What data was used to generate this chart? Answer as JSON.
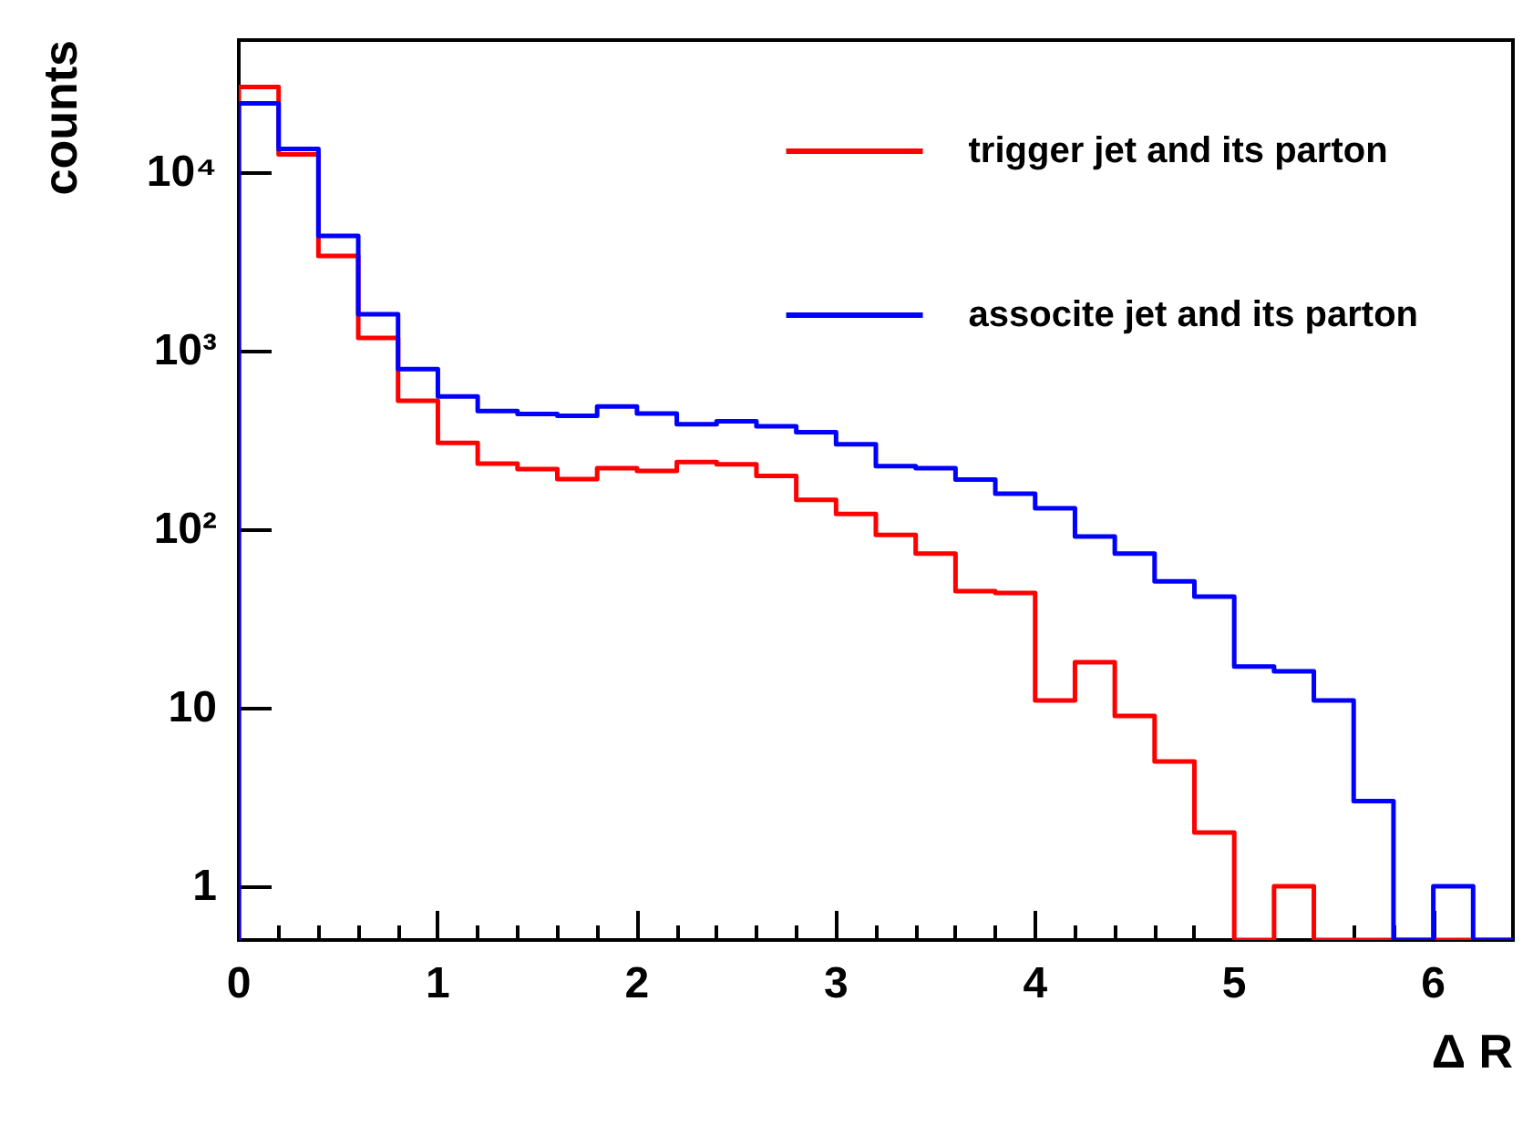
{
  "chart_data": {
    "type": "histogram",
    "xlabel": "Δ R",
    "ylabel": "counts",
    "bins": [
      0,
      0.2,
      0.4,
      0.6,
      0.8,
      1.0,
      1.2,
      1.4,
      1.6,
      1.8,
      2.0,
      2.2,
      2.4,
      2.6,
      2.8,
      3.0,
      3.2,
      3.4,
      3.6,
      3.8,
      4.0,
      4.2,
      4.4,
      4.6,
      4.8,
      5.0,
      5.2,
      5.4,
      5.6,
      5.8,
      6.0,
      6.2,
      6.4
    ],
    "series": [
      {
        "name": "trigger jet and its parton",
        "color": "#ff0000",
        "values": [
          30000,
          12600,
          3400,
          1180,
          525,
          305,
          233,
          217,
          191,
          220,
          212,
          238,
          231,
          199,
          146,
          122,
          93,
          73,
          45,
          44,
          11,
          18,
          9,
          5,
          2,
          null,
          1,
          null,
          null,
          null,
          null,
          null
        ]
      },
      {
        "name": "associte jet and its parton",
        "color": "#0000ff",
        "values": [
          24300,
          13500,
          4400,
          1600,
          790,
          555,
          460,
          442,
          432,
          487,
          445,
          388,
          403,
          377,
          350,
          299,
          226,
          220,
          190,
          158,
          131,
          91,
          73,
          51,
          42,
          17,
          16,
          11,
          3,
          null,
          1,
          null
        ]
      }
    ],
    "xlim": [
      0,
      6.4
    ],
    "xticks": [
      0,
      1,
      2,
      3,
      4,
      5,
      6
    ],
    "ylim": [
      0.5,
      55000
    ],
    "yticks": [
      1,
      10,
      {
        "value": 100,
        "label": "10²"
      },
      {
        "value": 1000,
        "label": "10³"
      },
      {
        "value": 10000,
        "label": "10⁴"
      }
    ],
    "log": "y",
    "grid": false,
    "legend": "top right",
    "line_style": "solid"
  }
}
